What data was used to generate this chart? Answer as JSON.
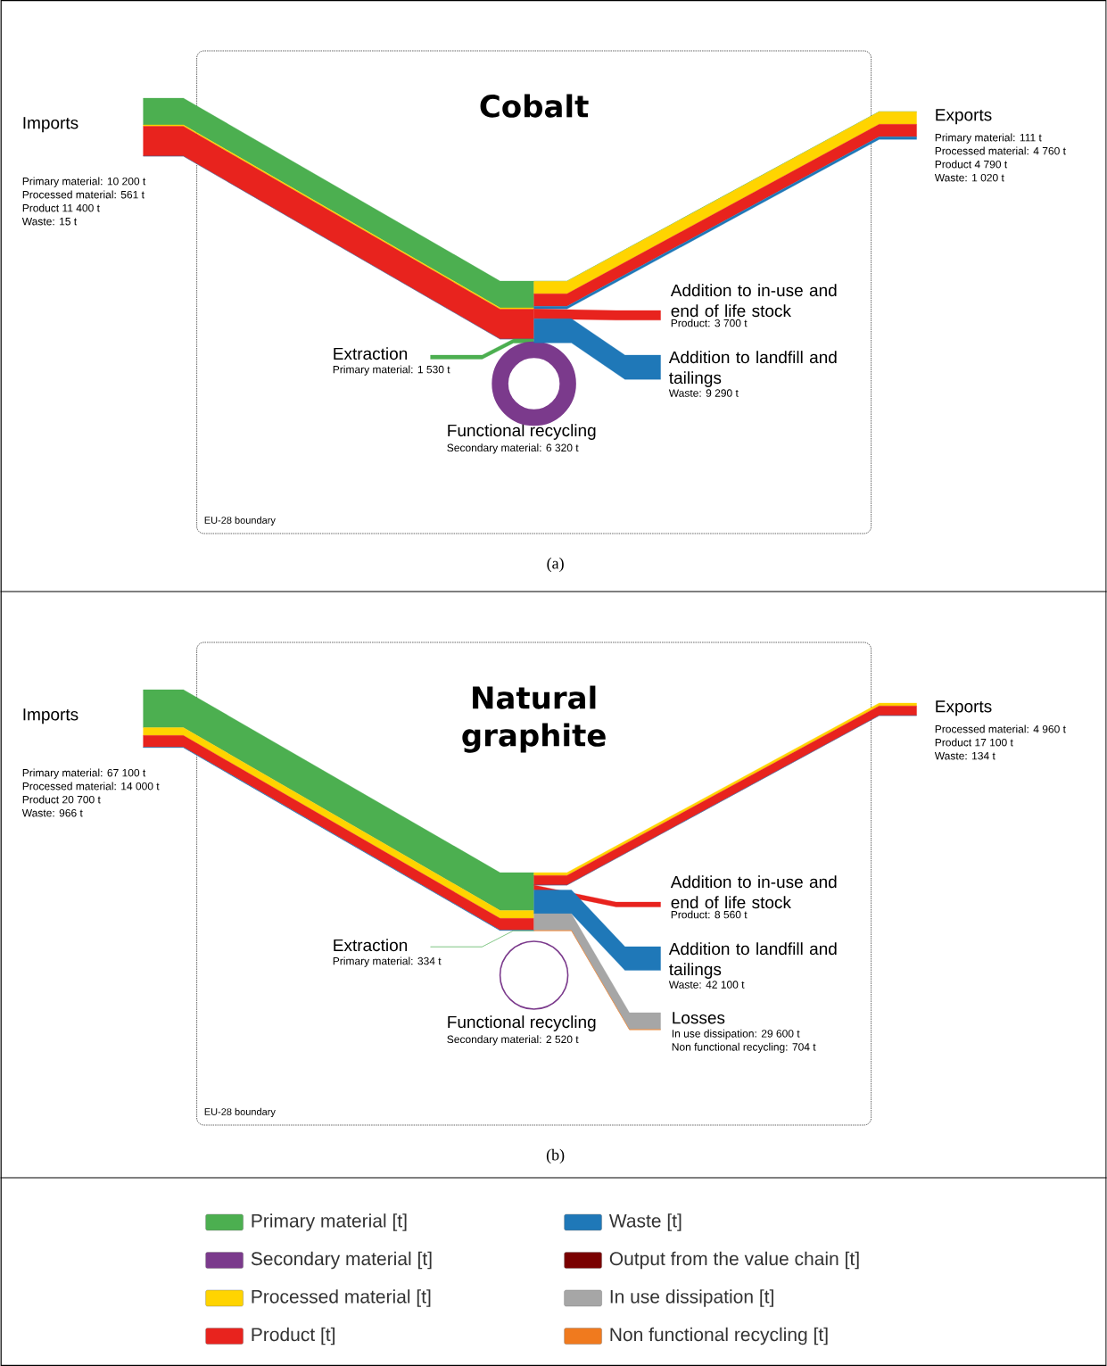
{
  "chart_data": [
    {
      "type": "other",
      "title": "Cobalt",
      "categories": [
        "Imports",
        "Exports",
        "Extraction",
        "Functional recycling",
        "Addition to in-use and end of life stock",
        "Addition to landfill and tailings"
      ],
      "series": [
        {
          "color": "#4caf50",
          "values": [
            10200,
            111,
            1530,
            null,
            null,
            null
          ],
          "value_labels": [
            "Primary material: 10 200 t",
            "Primary material: 111 t",
            "Primary material: 1 530 t",
            null,
            null,
            null
          ]
        },
        {
          "color": "#7b3a8c",
          "values": [
            null,
            null,
            null,
            6320,
            null,
            null
          ],
          "value_labels": [
            null,
            null,
            null,
            "Secondary material: 6 320 t",
            null,
            null
          ]
        },
        {
          "color": "#ffd400",
          "values": [
            561,
            4760,
            null,
            null,
            null,
            null
          ],
          "value_labels": [
            "Processed material: 561 t",
            "Processed material: 4 760 t",
            null,
            null,
            null,
            null
          ]
        },
        {
          "color": "#e8231e",
          "values": [
            11400,
            4790,
            null,
            null,
            3700,
            null
          ],
          "value_labels": [
            "Product 11 400 t",
            "Product 4 790 t",
            null,
            null,
            "Product: 3 700 t",
            null
          ]
        },
        {
          "color": "#1f78b8",
          "values": [
            15,
            1020,
            null,
            null,
            null,
            9290
          ],
          "value_labels": [
            "Waste: 15 t",
            "Waste: 1 020 t",
            null,
            null,
            null,
            "Waste: 9 290 t"
          ]
        }
      ],
      "annotations": [
        "EU-28 boundary",
        "(a)"
      ]
    },
    {
      "type": "other",
      "title": "Natural graphite",
      "categories": [
        "Imports",
        "Exports",
        "Extraction",
        "Functional recycling",
        "Addition to in-use and end of life stock",
        "Addition to landfill and tailings",
        "Losses"
      ],
      "series": [
        {
          "color": "#4caf50",
          "values": [
            67100,
            null,
            334,
            null,
            null,
            null,
            null
          ],
          "value_labels": [
            "Primary material: 67 100 t",
            null,
            "Primary material: 334 t",
            null,
            null,
            null,
            null
          ]
        },
        {
          "color": "#7b3a8c",
          "values": [
            null,
            null,
            null,
            2520,
            null,
            null,
            null
          ],
          "value_labels": [
            null,
            null,
            null,
            "Secondary material: 2 520 t",
            null,
            null,
            null
          ]
        },
        {
          "color": "#ffd400",
          "values": [
            14000,
            4960,
            null,
            null,
            null,
            null,
            null
          ],
          "value_labels": [
            "Processed material: 14 000 t",
            "Processed material: 4 960 t",
            null,
            null,
            null,
            null,
            null
          ]
        },
        {
          "color": "#e8231e",
          "values": [
            20700,
            17100,
            null,
            null,
            8560,
            null,
            null
          ],
          "value_labels": [
            "Product 20 700 t",
            "Product 17 100 t",
            null,
            null,
            "Product: 8 560 t",
            null,
            null
          ]
        },
        {
          "color": "#1f78b8",
          "values": [
            966,
            134,
            null,
            null,
            null,
            42100,
            null
          ],
          "value_labels": [
            "Waste: 966 t",
            "Waste: 134 t",
            null,
            null,
            null,
            "Waste: 42 100 t",
            null
          ]
        },
        {
          "color": "#a6a6a6",
          "values": [
            null,
            null,
            null,
            null,
            null,
            null,
            29600
          ],
          "value_labels": [
            null,
            null,
            null,
            null,
            null,
            null,
            "In use dissipation: 29 600 t"
          ]
        },
        {
          "color": "#f07a1e",
          "values": [
            null,
            null,
            null,
            null,
            null,
            null,
            704
          ],
          "value_labels": [
            null,
            null,
            null,
            null,
            null,
            null,
            "Non functional recycling: 704 t"
          ]
        }
      ],
      "annotations": [
        "EU-28 boundary",
        "(b)"
      ]
    },
    {
      "type": "other",
      "legend": "bottom",
      "series": [
        {
          "name": "Primary material [t]",
          "color": "#4caf50"
        },
        {
          "name": "Secondary material [t]",
          "color": "#7b3a8c"
        },
        {
          "name": "Processed material [t]",
          "color": "#ffd400"
        },
        {
          "name": "Product [t]",
          "color": "#e8231e"
        },
        {
          "name": "Waste [t]",
          "color": "#1f78b8"
        },
        {
          "name": "Output from the value chain [t]",
          "color": "#7a0000"
        },
        {
          "name": "In use dissipation [t]",
          "color": "#a6a6a6"
        },
        {
          "name": "Non functional recycling [t]",
          "color": "#f07a1e"
        }
      ]
    }
  ]
}
